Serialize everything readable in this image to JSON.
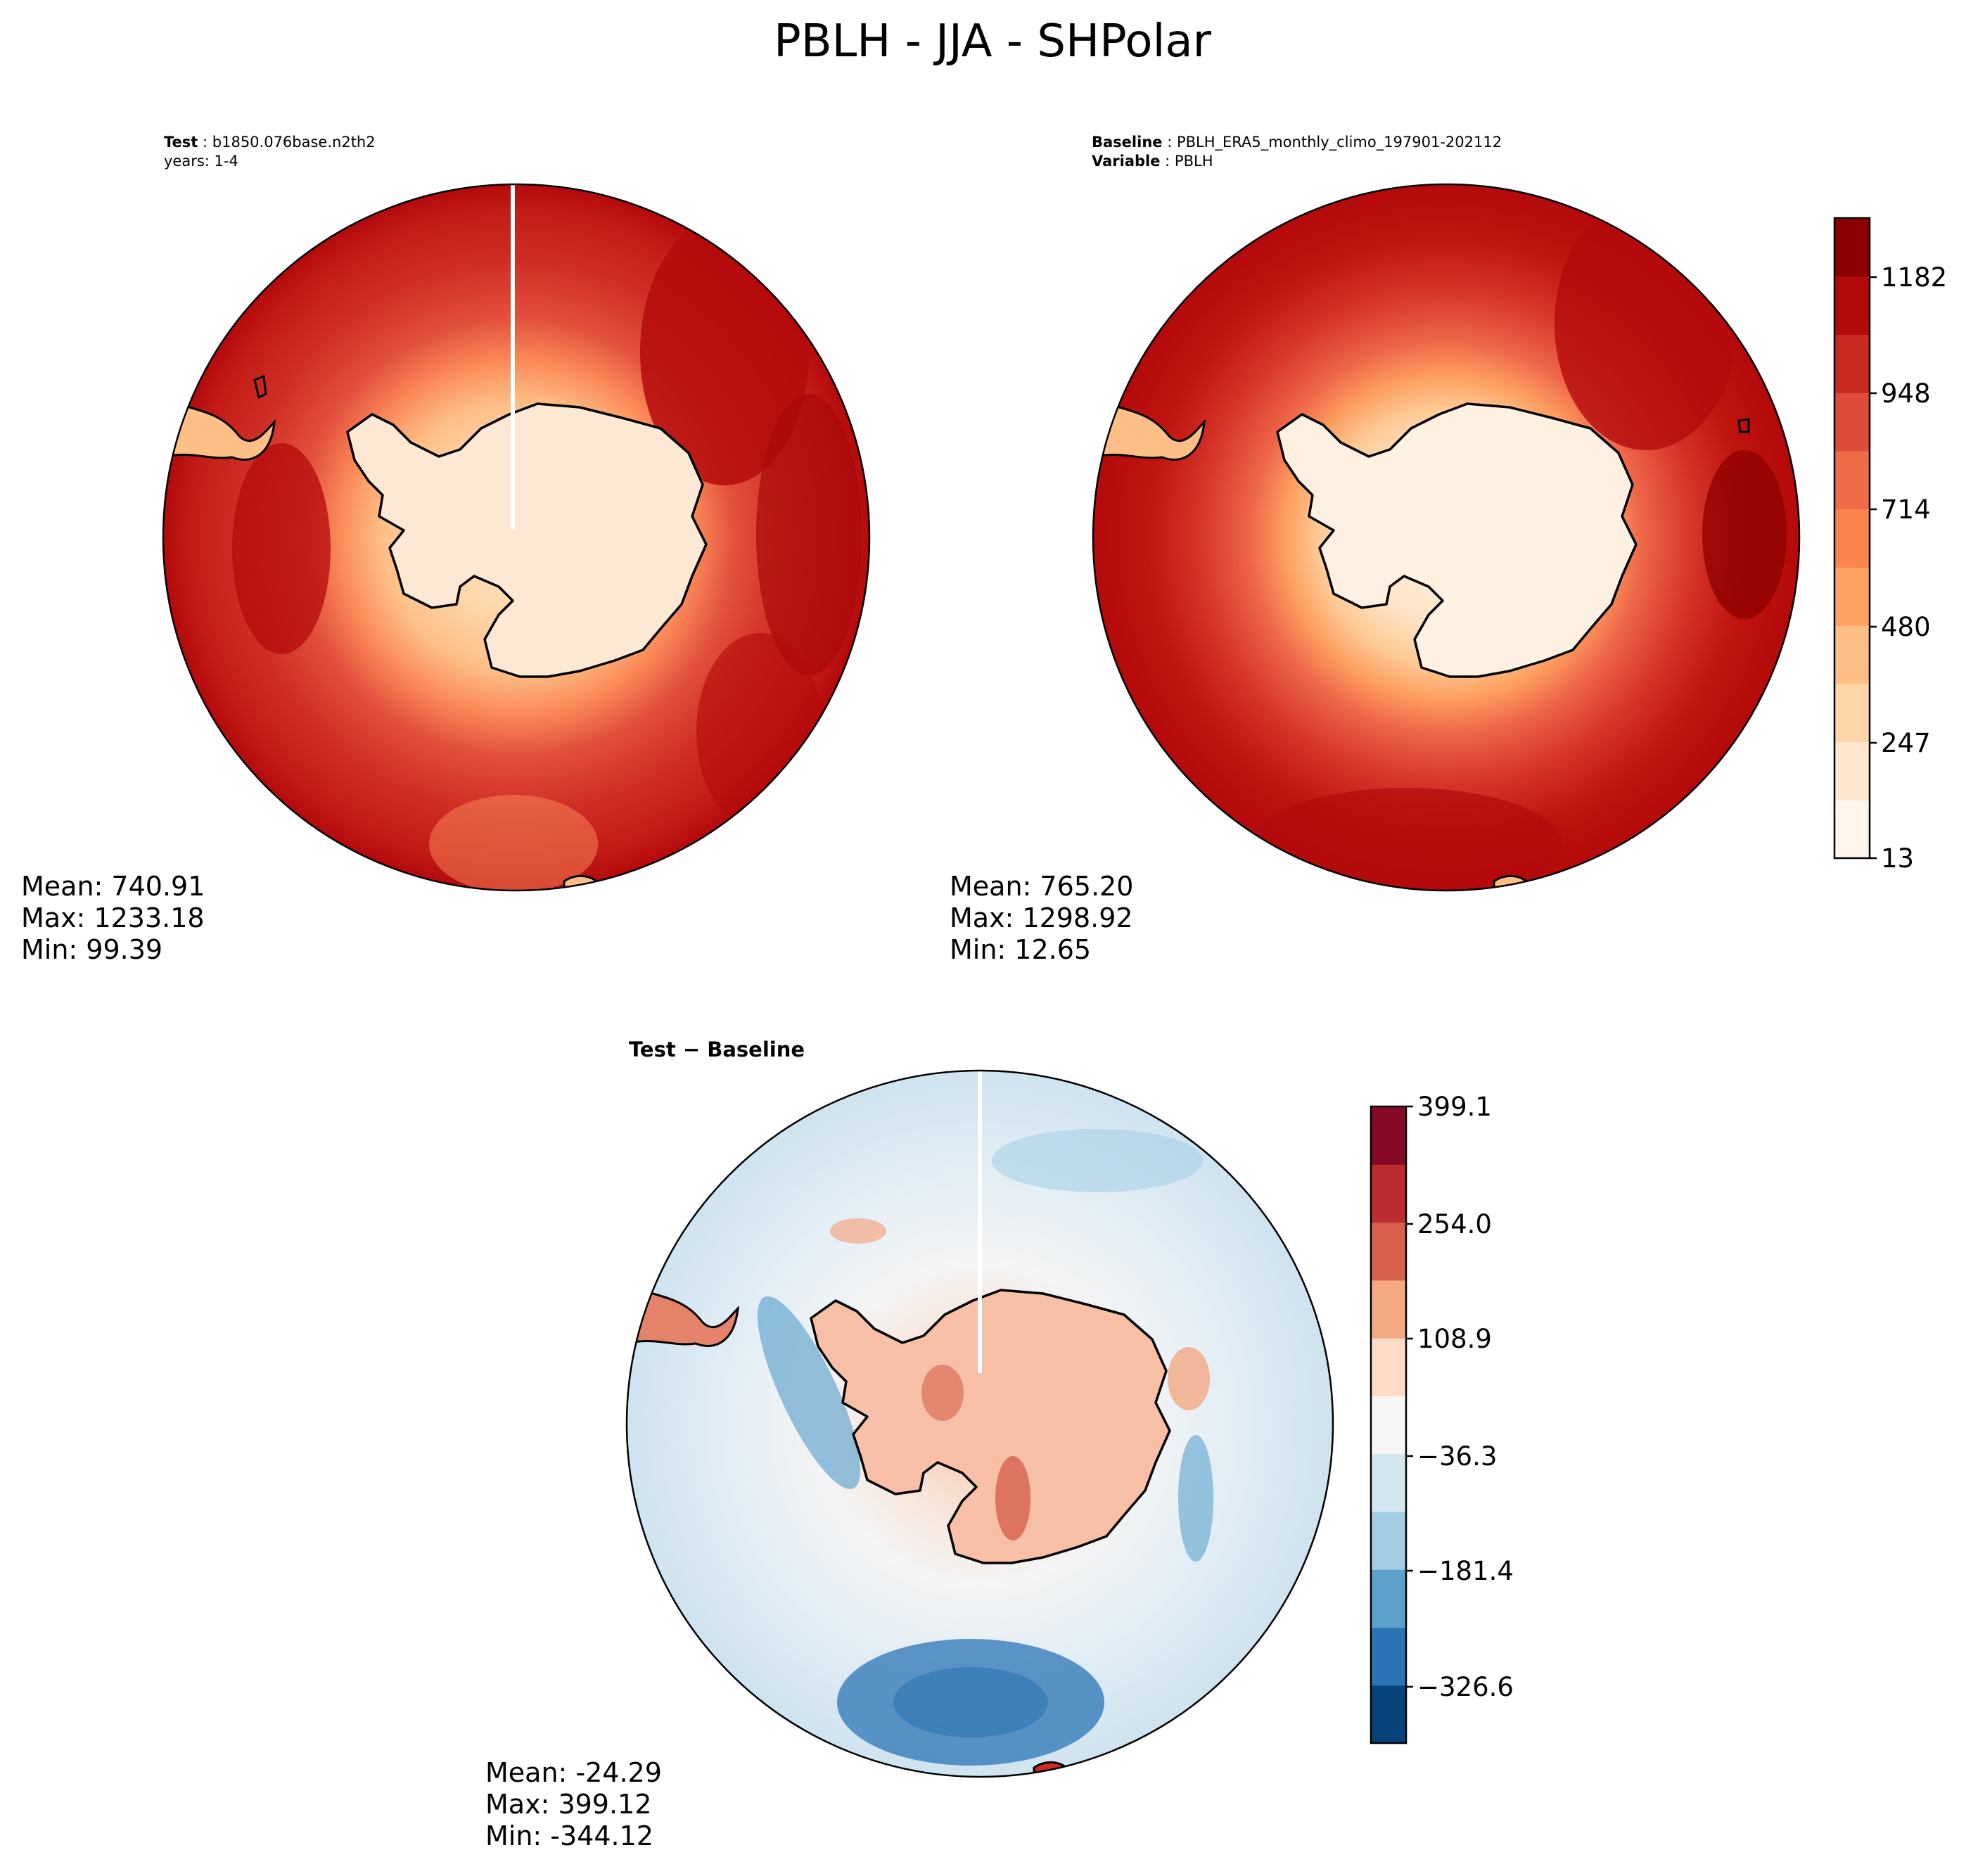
{
  "figure": {
    "title": "PBLH - JJA - SHPolar"
  },
  "panels": {
    "test": {
      "label_bold": "Test",
      "label_value": "b1850.076base.n2th2",
      "label_line2": "years: 1-4",
      "stats": {
        "mean": "Mean: 740.91",
        "max": "Max: 1233.18",
        "min": "Min: 99.39"
      }
    },
    "baseline": {
      "label_bold": "Baseline",
      "label_value": "PBLH_ERA5_monthly_climo_197901-202112",
      "label2_bold": "Variable",
      "label2_value": "PBLH",
      "stats": {
        "mean": "Mean: 765.20",
        "max": "Max: 1298.92",
        "min": "Min: 12.65"
      }
    },
    "diff": {
      "title": "Test − Baseline",
      "stats": {
        "mean": "Mean: -24.29",
        "max": "Max: 399.12",
        "min": "Min: -344.12"
      }
    }
  },
  "colorbars": {
    "main": {
      "ticks": [
        "13",
        "247",
        "480",
        "714",
        "948",
        "1182"
      ],
      "colors": [
        "#fff5eb",
        "#fee6ce",
        "#fdd5a8",
        "#fdbf86",
        "#fda262",
        "#fb8550",
        "#f06a48",
        "#df4b3a",
        "#c92a22",
        "#b40a0c",
        "#8e0000"
      ]
    },
    "diff": {
      "ticks": [
        "−326.6",
        "−181.4",
        "−36.3",
        "108.9",
        "254.0",
        "399.1"
      ],
      "colors": [
        "#08427a",
        "#2b74b4",
        "#5ca2cd",
        "#a3cde3",
        "#d3e6f1",
        "#f5f5f5",
        "#fddbc7",
        "#f4a884",
        "#d6604d",
        "#bd2b30",
        "#860a25"
      ]
    }
  },
  "chart_data": {
    "type": "map",
    "projection": "south polar stereographic",
    "panels": [
      {
        "name": "Test",
        "mean": 740.91,
        "max": 1233.18,
        "min": 99.39
      },
      {
        "name": "Baseline",
        "mean": 765.2,
        "max": 1298.92,
        "min": 12.65
      },
      {
        "name": "Test - Baseline",
        "mean": -24.29,
        "max": 399.12,
        "min": -344.12
      }
    ],
    "colorbar_main": {
      "range": [
        13,
        1299
      ],
      "ticks": [
        13,
        247,
        480,
        714,
        948,
        1182
      ]
    },
    "colorbar_diff": {
      "range": [
        -399.1,
        399.1
      ],
      "ticks": [
        -326.6,
        -181.4,
        -36.3,
        108.9,
        254.0,
        399.1
      ]
    }
  }
}
